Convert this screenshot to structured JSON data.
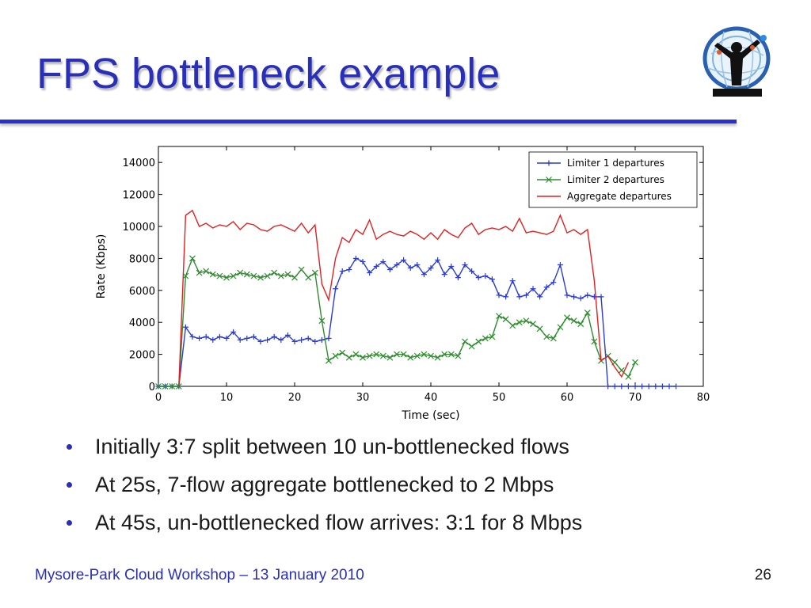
{
  "slide": {
    "title": "FPS bottleneck example",
    "bullets": [
      "Initially 3:7 split between 10 un-bottlenecked flows",
      "At 25s, 7-flow aggregate bottlenecked to 2 Mbps",
      "At 45s, un-bottlenecked flow arrives: 3:1 for 8 Mbps"
    ],
    "footer": {
      "workshop": "Mysore-Park Cloud Workshop",
      "date": " – 13 January 2010",
      "page": "26"
    }
  },
  "colors": {
    "title": "#2a2fb8",
    "limiter1": "#2a3bd6",
    "limiter2": "#2e8b2e",
    "aggregate": "#e02020"
  },
  "chart_data": {
    "type": "line",
    "xlabel": "Time (sec)",
    "ylabel": "Rate (Kbps)",
    "xlim": [
      0,
      80
    ],
    "ylim": [
      0,
      15000
    ],
    "xticks": [
      0,
      10,
      20,
      30,
      40,
      50,
      60,
      70,
      80
    ],
    "yticks": [
      0,
      2000,
      4000,
      6000,
      8000,
      10000,
      12000,
      14000
    ],
    "grid": false,
    "legend_position": "top-right",
    "series": [
      {
        "name": "Limiter 1 departures",
        "marker": "plus",
        "x": [
          0,
          1,
          2,
          3,
          4,
          5,
          6,
          7,
          8,
          9,
          10,
          11,
          12,
          13,
          14,
          15,
          16,
          17,
          18,
          19,
          20,
          21,
          22,
          23,
          24,
          25,
          26,
          27,
          28,
          29,
          30,
          31,
          32,
          33,
          34,
          35,
          36,
          37,
          38,
          39,
          40,
          41,
          42,
          43,
          44,
          45,
          46,
          47,
          48,
          49,
          50,
          51,
          52,
          53,
          54,
          55,
          56,
          57,
          58,
          59,
          60,
          61,
          62,
          63,
          64,
          65,
          66,
          67,
          68,
          69,
          70,
          71,
          72,
          73,
          74,
          75,
          76
        ],
        "y": [
          0,
          0,
          0,
          0,
          3700,
          3100,
          3000,
          3100,
          2900,
          3100,
          3000,
          3400,
          2900,
          3000,
          3100,
          2800,
          2900,
          3100,
          2900,
          3200,
          2800,
          2900,
          3000,
          2800,
          2900,
          3000,
          6100,
          7200,
          7300,
          8000,
          7800,
          7100,
          7500,
          7800,
          7300,
          7600,
          7900,
          7400,
          7600,
          7000,
          7400,
          7900,
          7000,
          7500,
          6800,
          7600,
          7200,
          6800,
          6900,
          6700,
          5700,
          5600,
          6600,
          5600,
          5700,
          6100,
          5600,
          6200,
          6500,
          7600,
          5700,
          5600,
          5500,
          5700,
          5600,
          5600,
          0,
          0,
          0,
          0,
          0,
          0,
          0,
          0,
          0,
          0,
          0
        ]
      },
      {
        "name": "Limiter 2 departures",
        "marker": "x",
        "x": [
          0,
          1,
          2,
          3,
          4,
          5,
          6,
          7,
          8,
          9,
          10,
          11,
          12,
          13,
          14,
          15,
          16,
          17,
          18,
          19,
          20,
          21,
          22,
          23,
          24,
          25,
          26,
          27,
          28,
          29,
          30,
          31,
          32,
          33,
          34,
          35,
          36,
          37,
          38,
          39,
          40,
          41,
          42,
          43,
          44,
          45,
          46,
          47,
          48,
          49,
          50,
          51,
          52,
          53,
          54,
          55,
          56,
          57,
          58,
          59,
          60,
          61,
          62,
          63,
          64,
          65,
          66,
          67,
          68,
          69,
          70
        ],
        "y": [
          0,
          0,
          0,
          0,
          6900,
          8000,
          7100,
          7200,
          7000,
          6900,
          6800,
          6900,
          7100,
          7000,
          6900,
          6800,
          6900,
          7100,
          6900,
          7000,
          6800,
          7300,
          6800,
          7100,
          4100,
          1600,
          1900,
          2100,
          1800,
          2000,
          1800,
          1900,
          2000,
          1900,
          1800,
          2000,
          2000,
          1800,
          1900,
          2000,
          1900,
          1800,
          2000,
          2000,
          1900,
          2800,
          2500,
          2800,
          3000,
          3100,
          4400,
          4200,
          3800,
          4000,
          4100,
          3900,
          3600,
          3100,
          3000,
          3700,
          4300,
          4100,
          3900,
          4600,
          2800,
          1600,
          1900,
          1500,
          1000,
          600,
          1500
        ]
      },
      {
        "name": "Aggregate departures",
        "marker": "none",
        "x": [
          3,
          4,
          5,
          6,
          7,
          8,
          9,
          10,
          11,
          12,
          13,
          14,
          15,
          16,
          17,
          18,
          19,
          20,
          21,
          22,
          23,
          24,
          25,
          26,
          27,
          28,
          29,
          30,
          31,
          32,
          33,
          34,
          35,
          36,
          37,
          38,
          39,
          40,
          41,
          42,
          43,
          44,
          45,
          46,
          47,
          48,
          49,
          50,
          51,
          52,
          53,
          54,
          55,
          56,
          57,
          58,
          59,
          60,
          61,
          62,
          63,
          64,
          65,
          66,
          67,
          68,
          69
        ],
        "y": [
          0,
          10700,
          11000,
          10000,
          10200,
          9900,
          10100,
          10000,
          10300,
          9800,
          10200,
          10100,
          9800,
          9700,
          10000,
          10100,
          9900,
          9700,
          10200,
          9600,
          10100,
          6400,
          5400,
          8000,
          9300,
          9000,
          9800,
          9500,
          10400,
          9200,
          9500,
          9700,
          9500,
          9400,
          9700,
          9500,
          9200,
          9600,
          9200,
          9800,
          9500,
          9300,
          9900,
          10200,
          9500,
          9800,
          9900,
          9800,
          10000,
          9700,
          10500,
          9600,
          9700,
          9600,
          9500,
          9700,
          10700,
          9600,
          9800,
          9500,
          9800,
          6600,
          1600,
          1900,
          1200,
          600,
          1500
        ]
      }
    ]
  }
}
